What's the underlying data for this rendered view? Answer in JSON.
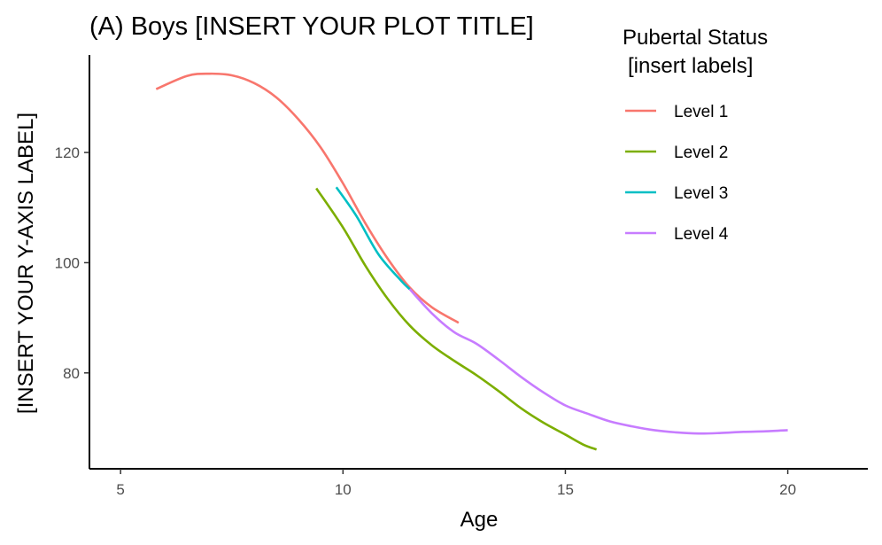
{
  "chart_data": {
    "type": "line",
    "title": "(A) Boys [INSERT YOUR PLOT TITLE]",
    "xlabel": "Age",
    "ylabel": "[INSERT YOUR Y-AXIS LABEL]",
    "xlim": [
      4.3,
      21.8
    ],
    "ylim": [
      62.6,
      137.7
    ],
    "x_ticks": [
      5,
      10,
      15,
      20
    ],
    "y_ticks": [
      80,
      100,
      120
    ],
    "grid": false,
    "legend": {
      "title": "Pubertal Status\n[insert labels]",
      "position": "top-right"
    },
    "series": [
      {
        "name": "Level 1",
        "color": "#F8766D",
        "points": [
          [
            5.8,
            131.5
          ],
          [
            6.5,
            133.9
          ],
          [
            7.0,
            134.3
          ],
          [
            7.5,
            134.0
          ],
          [
            8.0,
            132.6
          ],
          [
            8.5,
            130.0
          ],
          [
            9.0,
            126.0
          ],
          [
            9.5,
            120.9
          ],
          [
            10.0,
            114.4
          ],
          [
            10.5,
            107.2
          ],
          [
            11.0,
            100.8
          ],
          [
            11.5,
            95.5
          ],
          [
            12.0,
            91.9
          ],
          [
            12.6,
            89.1
          ]
        ]
      },
      {
        "name": "Level 2",
        "color": "#7CAE00",
        "points": [
          [
            9.4,
            113.5
          ],
          [
            10.0,
            106.4
          ],
          [
            10.5,
            99.5
          ],
          [
            11.0,
            93.5
          ],
          [
            11.5,
            88.6
          ],
          [
            12.0,
            85.0
          ],
          [
            12.5,
            82.2
          ],
          [
            13.0,
            79.6
          ],
          [
            13.5,
            76.7
          ],
          [
            14.0,
            73.6
          ],
          [
            14.5,
            71.0
          ],
          [
            15.0,
            68.8
          ],
          [
            15.4,
            67.0
          ],
          [
            15.7,
            66.1
          ]
        ]
      },
      {
        "name": "Level 3",
        "color": "#00BFC4",
        "points": [
          [
            9.85,
            113.7
          ],
          [
            10.3,
            108.5
          ],
          [
            10.8,
            101.5
          ],
          [
            11.3,
            96.8
          ],
          [
            11.5,
            95.2
          ]
        ]
      },
      {
        "name": "Level 4",
        "color": "#C77CFF",
        "points": [
          [
            11.5,
            95.2
          ],
          [
            12.0,
            90.8
          ],
          [
            12.5,
            87.4
          ],
          [
            13.0,
            85.3
          ],
          [
            13.5,
            82.4
          ],
          [
            14.0,
            79.3
          ],
          [
            14.5,
            76.5
          ],
          [
            15.0,
            74.1
          ],
          [
            15.5,
            72.6
          ],
          [
            16.0,
            71.2
          ],
          [
            16.5,
            70.3
          ],
          [
            17.0,
            69.6
          ],
          [
            17.5,
            69.2
          ],
          [
            18.0,
            69.0
          ],
          [
            18.5,
            69.1
          ],
          [
            19.0,
            69.3
          ],
          [
            19.5,
            69.4
          ],
          [
            20.0,
            69.6
          ]
        ]
      }
    ]
  }
}
